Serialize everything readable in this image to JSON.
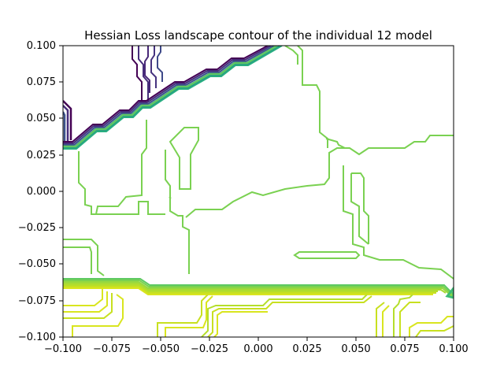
{
  "chart_data": {
    "type": "contour",
    "title": "Hessian Loss landscape contour of the individual 12 model",
    "xlabel": "",
    "ylabel": "",
    "xlim": [
      -0.1,
      0.1
    ],
    "ylim": [
      -0.1,
      0.1
    ],
    "x_ticks": [
      "−0.100",
      "−0.075",
      "−0.050",
      "−0.025",
      "0.000",
      "0.025",
      "0.050",
      "0.075",
      "0.100"
    ],
    "y_ticks": [
      "−0.100",
      "−0.075",
      "−0.050",
      "−0.025",
      "0.000",
      "0.025",
      "0.050",
      "0.075",
      "0.100"
    ],
    "grid": false,
    "colormap": "viridis",
    "colors": {
      "purple": "#440154",
      "indigo": "#472d7b",
      "blue": "#3b528b",
      "teal": "#21918c",
      "green": "#5ec962",
      "light_green": "#7ad151",
      "yellow_green": "#b5de2b",
      "yellow": "#d9e51f"
    }
  }
}
